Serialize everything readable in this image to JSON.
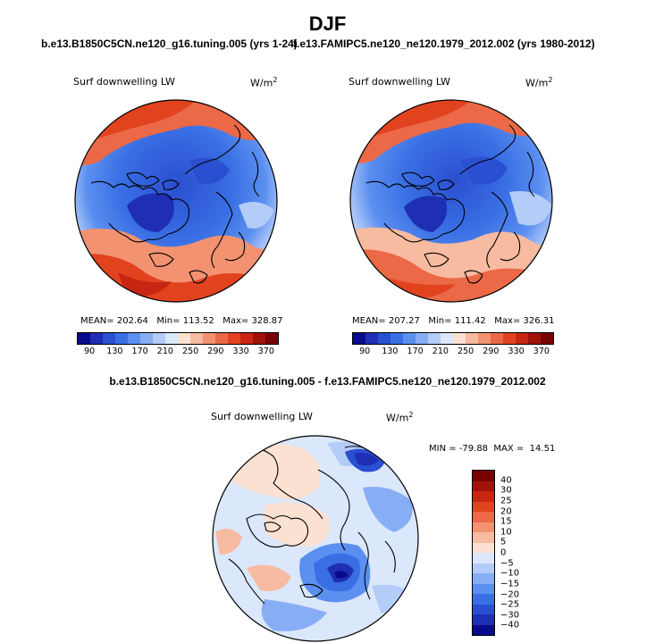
{
  "figure": {
    "season": "DJF",
    "panel_left_title": "b.e13.B1850C5CN.ne120_g16.tuning.005 (yrs 1-24)",
    "panel_right_title": "f.e13.FAMIPC5.ne120_ne120.1979_2012.002 (yrs 1980-2012)",
    "diff_title": "b.e13.B1850C5CN.ne120_g16.tuning.005 - f.e13.FAMIPC5.ne120_ne120.1979_2012.002"
  },
  "chart_data": [
    {
      "type": "heatmap",
      "projection": "north-polar-stereographic",
      "variable": "Surf downwelling LW",
      "units": "W/m",
      "units_exp": "2",
      "stats": {
        "mean_label": "MEAN=",
        "mean": "202.64",
        "min_label": "Min=",
        "min": "113.52",
        "max_label": "Max=",
        "max": "328.87"
      },
      "colorbar_ticks": [
        "90",
        "130",
        "170",
        "210",
        "250",
        "290",
        "330",
        "370"
      ],
      "colors": [
        "#0a0a8c",
        "#1e2fb4",
        "#2a4fd0",
        "#3a6fe4",
        "#5b8ff0",
        "#87aef5",
        "#b3ccf8",
        "#dbe7fb",
        "#fbe1d2",
        "#f7bba1",
        "#f29271",
        "#eb6946",
        "#e2431f",
        "#c82512",
        "#a1120a",
        "#780202"
      ]
    },
    {
      "type": "heatmap",
      "projection": "north-polar-stereographic",
      "variable": "Surf downwelling LW",
      "units": "W/m",
      "units_exp": "2",
      "stats": {
        "mean_label": "MEAN=",
        "mean": "207.27",
        "min_label": "Min=",
        "min": "111.42",
        "max_label": "Max=",
        "max": "326.31"
      },
      "colorbar_ticks": [
        "90",
        "130",
        "170",
        "210",
        "250",
        "290",
        "330",
        "370"
      ],
      "colors": [
        "#0a0a8c",
        "#1e2fb4",
        "#2a4fd0",
        "#3a6fe4",
        "#5b8ff0",
        "#87aef5",
        "#b3ccf8",
        "#dbe7fb",
        "#fbe1d2",
        "#f7bba1",
        "#f29271",
        "#eb6946",
        "#e2431f",
        "#c82512",
        "#a1120a",
        "#780202"
      ]
    },
    {
      "type": "heatmap",
      "projection": "north-polar-stereographic",
      "variable": "Surf downwelling LW",
      "units": "W/m",
      "units_exp": "2",
      "stats": {
        "min_label": "MIN =",
        "min": "-79.88",
        "max_label": "MAX =",
        "max": "14.51"
      },
      "colorbar_ticks": [
        "40",
        "30",
        "25",
        "20",
        "15",
        "10",
        "5",
        "0",
        "−5",
        "−10",
        "−15",
        "−20",
        "−25",
        "−30",
        "−40"
      ],
      "colors": [
        "#780202",
        "#a1120a",
        "#c82512",
        "#e2431f",
        "#eb6946",
        "#f29271",
        "#f7bba1",
        "#fbe1d2",
        "#dbe7fb",
        "#b3ccf8",
        "#87aef5",
        "#5b8ff0",
        "#3a6fe4",
        "#2a4fd0",
        "#1e2fb4",
        "#0a0a8c"
      ]
    }
  ]
}
